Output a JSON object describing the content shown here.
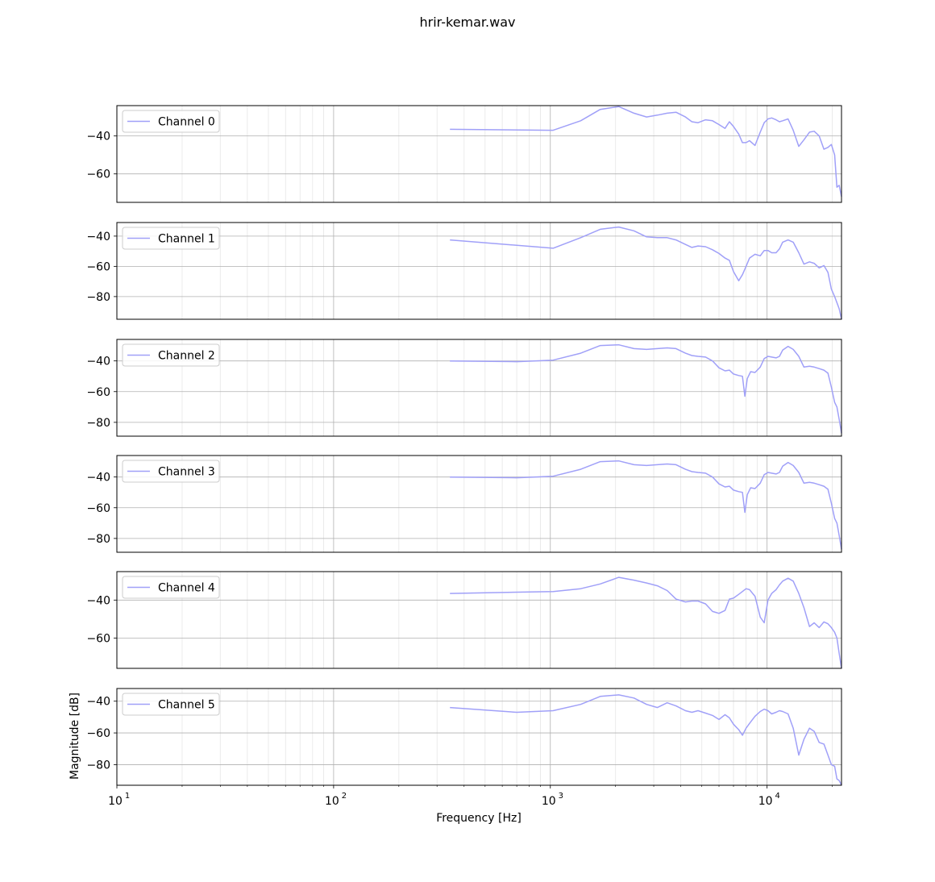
{
  "figure": {
    "title": "hrir-kemar.wav"
  },
  "colors": {
    "line": "#a0a0f8",
    "grid_major": "#b0b0b0",
    "grid_minor": "#e6e6e6",
    "axes": "#000000",
    "legend_border": "#cccccc"
  },
  "chart_data": [
    {
      "type": "line",
      "name": "Channel 0",
      "legend": "Channel 0",
      "legend_position": "upper-left",
      "xscale": "log",
      "xlim": [
        10,
        22050
      ],
      "ylim": [
        -75,
        -24
      ],
      "yticks": [
        -40,
        -60
      ],
      "ytick_labels": [
        "−40",
        "−60"
      ],
      "grid": true,
      "x": [
        344,
        1030,
        1380,
        1700,
        2070,
        2430,
        2780,
        3120,
        3460,
        3800,
        4200,
        4500,
        4800,
        5200,
        5600,
        6000,
        6400,
        6700,
        7000,
        7400,
        7700,
        8000,
        8300,
        8800,
        9300,
        9700,
        10100,
        10500,
        11000,
        11400,
        11800,
        12500,
        13200,
        14000,
        14800,
        15700,
        16500,
        17400,
        18300,
        19100,
        19800,
        20500,
        21000,
        21500,
        22050
      ],
      "y": [
        -36.5,
        -37,
        -32,
        -26,
        -24.5,
        -28,
        -30,
        -29,
        -28,
        -27.5,
        -30,
        -32.5,
        -33,
        -31.5,
        -32,
        -34,
        -36,
        -32.5,
        -35,
        -39,
        -43.5,
        -43.5,
        -42.5,
        -45,
        -38,
        -33,
        -31,
        -30.5,
        -31.5,
        -32.5,
        -32,
        -31,
        -37,
        -45.5,
        -42,
        -38,
        -37.5,
        -40,
        -47,
        -46,
        -44.5,
        -50,
        -67,
        -66,
        -72
      ]
    },
    {
      "type": "line",
      "name": "Channel 1",
      "legend": "Channel 1",
      "legend_position": "upper-left",
      "xscale": "log",
      "xlim": [
        10,
        22050
      ],
      "ylim": [
        -95,
        -31
      ],
      "yticks": [
        -40,
        -60,
        -80
      ],
      "ytick_labels": [
        "−40",
        "−60",
        "−80"
      ],
      "grid": true,
      "x": [
        344,
        1030,
        1380,
        1700,
        2070,
        2430,
        2780,
        3120,
        3460,
        3800,
        4200,
        4500,
        4800,
        5200,
        5600,
        6000,
        6400,
        6700,
        7000,
        7400,
        7700,
        8000,
        8300,
        8800,
        9300,
        9700,
        10100,
        10500,
        11000,
        11400,
        11800,
        12500,
        13200,
        14000,
        14800,
        15700,
        16500,
        17400,
        18300,
        19100,
        19800,
        20500,
        21000,
        21500,
        22050
      ],
      "y": [
        -42.5,
        -48,
        -41,
        -35.5,
        -34,
        -36.5,
        -40.5,
        -41,
        -41,
        -42.5,
        -45.5,
        -47.5,
        -46.5,
        -47,
        -49,
        -51.5,
        -54.5,
        -56,
        -63.5,
        -69.5,
        -65.5,
        -60,
        -54.5,
        -52,
        -53,
        -49.5,
        -49.5,
        -51,
        -51,
        -48.5,
        -44,
        -42.5,
        -44,
        -51,
        -58.5,
        -57,
        -58,
        -61,
        -59.5,
        -64,
        -75,
        -80,
        -84,
        -88,
        -95
      ]
    },
    {
      "type": "line",
      "name": "Channel 2",
      "legend": "Channel 2",
      "legend_position": "upper-left",
      "xscale": "log",
      "xlim": [
        10,
        22050
      ],
      "ylim": [
        -89,
        -26
      ],
      "yticks": [
        -40,
        -60,
        -80
      ],
      "ytick_labels": [
        "−40",
        "−60",
        "−80"
      ],
      "grid": true,
      "x": [
        344,
        700,
        1030,
        1380,
        1700,
        2070,
        2430,
        2780,
        3120,
        3460,
        3800,
        4200,
        4500,
        4800,
        5200,
        5600,
        6000,
        6400,
        6700,
        7000,
        7400,
        7700,
        7900,
        8100,
        8400,
        8800,
        9300,
        9700,
        10100,
        10500,
        11000,
        11400,
        11800,
        12500,
        13200,
        14000,
        14800,
        15700,
        16500,
        17400,
        18300,
        19100,
        19800,
        20500,
        21000,
        21500,
        22050
      ],
      "y": [
        -40,
        -40.5,
        -39.5,
        -35,
        -30,
        -29.5,
        -32,
        -32.5,
        -32,
        -31.5,
        -32,
        -35,
        -36.5,
        -37,
        -37.5,
        -40,
        -44.5,
        -46.5,
        -46,
        -48.5,
        -49.5,
        -50,
        -63,
        -51.5,
        -47,
        -47.5,
        -44,
        -38.5,
        -37,
        -37.5,
        -38,
        -37,
        -33,
        -30.5,
        -32.5,
        -37,
        -44,
        -43.5,
        -44,
        -45,
        -46,
        -48,
        -57,
        -67,
        -70,
        -78,
        -87
      ]
    },
    {
      "type": "line",
      "name": "Channel 3",
      "legend": "Channel 3",
      "legend_position": "upper-left",
      "xscale": "log",
      "xlim": [
        10,
        22050
      ],
      "ylim": [
        -89,
        -26
      ],
      "yticks": [
        -40,
        -60,
        -80
      ],
      "ytick_labels": [
        "−40",
        "−60",
        "−80"
      ],
      "grid": true,
      "x": [
        344,
        700,
        1030,
        1380,
        1700,
        2070,
        2430,
        2780,
        3120,
        3460,
        3800,
        4200,
        4500,
        4800,
        5200,
        5600,
        6000,
        6400,
        6700,
        7000,
        7400,
        7700,
        7900,
        8100,
        8400,
        8800,
        9300,
        9700,
        10100,
        10500,
        11000,
        11400,
        11800,
        12500,
        13200,
        14000,
        14800,
        15700,
        16500,
        17400,
        18300,
        19100,
        19800,
        20500,
        21000,
        21500,
        22050
      ],
      "y": [
        -40,
        -40.5,
        -39.5,
        -35,
        -30,
        -29.5,
        -32,
        -32.5,
        -32,
        -31.5,
        -32,
        -35,
        -36.5,
        -37,
        -37.5,
        -40,
        -44.5,
        -46.5,
        -46,
        -48.5,
        -49.5,
        -50,
        -63,
        -51.5,
        -47,
        -47.5,
        -44,
        -38.5,
        -37,
        -37.5,
        -38,
        -37,
        -33,
        -30.5,
        -32.5,
        -37,
        -44,
        -43.5,
        -44,
        -45,
        -46,
        -48,
        -57,
        -67,
        -70,
        -78,
        -87
      ]
    },
    {
      "type": "line",
      "name": "Channel 4",
      "legend": "Channel 4",
      "legend_position": "upper-left",
      "xscale": "log",
      "xlim": [
        10,
        22050
      ],
      "ylim": [
        -76,
        -25
      ],
      "yticks": [
        -40,
        -60
      ],
      "ytick_labels": [
        "−40",
        "−60"
      ],
      "grid": true,
      "x": [
        344,
        1030,
        1380,
        1700,
        2070,
        2430,
        2780,
        3120,
        3460,
        3800,
        4200,
        4500,
        4800,
        5200,
        5600,
        6000,
        6400,
        6700,
        7000,
        7400,
        7700,
        8000,
        8300,
        8800,
        9300,
        9700,
        10100,
        10500,
        11000,
        11400,
        11800,
        12500,
        13200,
        14000,
        14800,
        15700,
        16500,
        17400,
        18300,
        19100,
        19800,
        20500,
        21000,
        21500,
        22050
      ],
      "y": [
        -36.5,
        -35.5,
        -34,
        -31.5,
        -28,
        -29.5,
        -31,
        -32.5,
        -35,
        -39.5,
        -41,
        -40.5,
        -40.5,
        -42,
        -46,
        -47,
        -45.5,
        -39.5,
        -39,
        -37,
        -35.5,
        -34,
        -34.5,
        -38,
        -49,
        -52,
        -40,
        -36.5,
        -34.5,
        -32,
        -30,
        -28.5,
        -30,
        -36.5,
        -44,
        -54,
        -52,
        -54.5,
        -51.5,
        -52.5,
        -54.5,
        -57,
        -60,
        -68,
        -76
      ]
    },
    {
      "type": "line",
      "name": "Channel 5",
      "legend": "Channel 5",
      "legend_position": "upper-left",
      "xscale": "log",
      "xlim": [
        10,
        22050
      ],
      "ylim": [
        -93,
        -32
      ],
      "yticks": [
        -40,
        -60,
        -80
      ],
      "ytick_labels": [
        "−40",
        "−60",
        "−80"
      ],
      "grid": true,
      "x": [
        344,
        700,
        1030,
        1380,
        1700,
        2070,
        2430,
        2780,
        3120,
        3460,
        3800,
        4200,
        4500,
        4800,
        5200,
        5600,
        6000,
        6400,
        6700,
        7000,
        7400,
        7700,
        8000,
        8300,
        8800,
        9300,
        9700,
        10100,
        10500,
        11000,
        11400,
        11800,
        12500,
        13200,
        14000,
        14800,
        15700,
        16500,
        17400,
        18300,
        19100,
        19800,
        20500,
        21000,
        21500,
        22050
      ],
      "y": [
        -44,
        -47,
        -46,
        -42,
        -37,
        -36,
        -38,
        -42,
        -44,
        -41,
        -43,
        -46,
        -47,
        -46,
        -47.5,
        -49,
        -51.5,
        -48.5,
        -50.5,
        -54.5,
        -58,
        -61.5,
        -57,
        -54,
        -49.5,
        -46.5,
        -45,
        -46,
        -48,
        -47,
        -46,
        -46.5,
        -48,
        -57,
        -74,
        -64,
        -57,
        -59,
        -66,
        -67,
        -74,
        -80,
        -81,
        -89,
        -90,
        -93
      ]
    }
  ],
  "axes": {
    "xtick_labels": [
      "10",
      "10",
      "10",
      "10"
    ],
    "xtick_exponents": [
      "1",
      "2",
      "3",
      "4"
    ],
    "xlabel": "Frequency [Hz]",
    "ylabel": "Magnitude [dB]"
  }
}
